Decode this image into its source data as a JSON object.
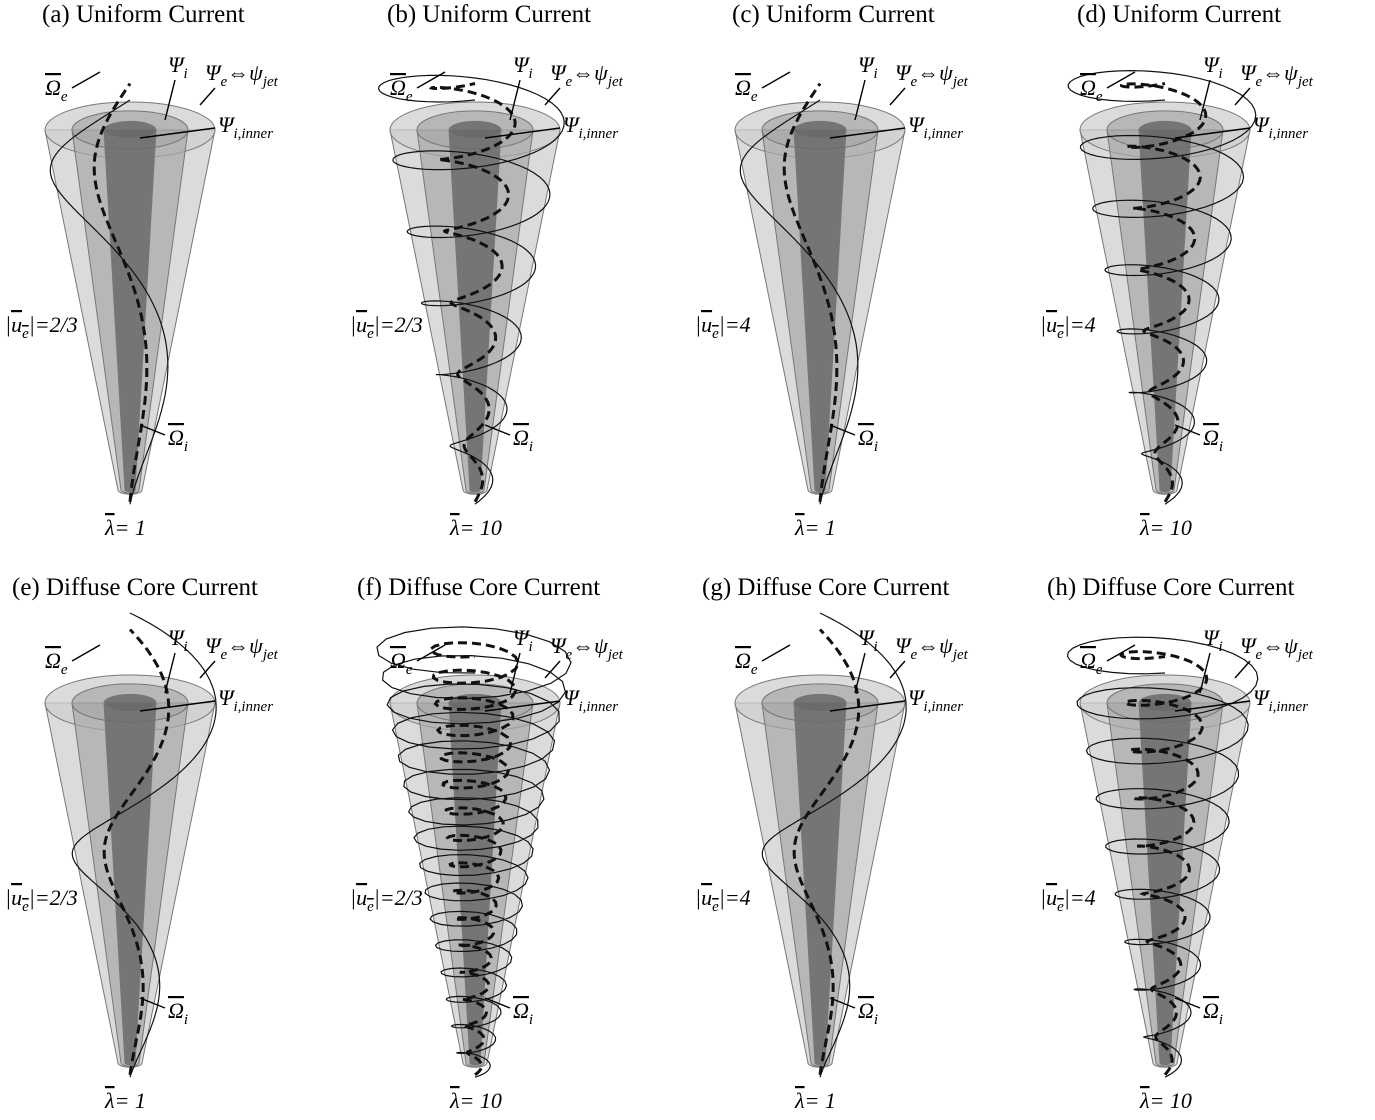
{
  "symbols": {
    "omega_e": {
      "base": "Ω",
      "sub": "e"
    },
    "psi_i": {
      "base": "Ψ",
      "sub": "i"
    },
    "psi_e": {
      "base": "Ψ",
      "sub": "e"
    },
    "equiv": "⇔",
    "psi_jet": {
      "base": "ψ",
      "sub": "jet"
    },
    "psi_inner": {
      "base": "Ψ",
      "sub": "i,inner"
    },
    "u_e": {
      "bar": "|",
      "base": "u",
      "sub": "e"
    },
    "omega_i": {
      "base": "Ω",
      "sub": "i"
    },
    "lambda": "λ"
  },
  "panels": [
    {
      "title": "(a) Uniform Current",
      "u_e_value": "=2/3",
      "lambda_value": "= 1"
    },
    {
      "title": "(b) Uniform Current",
      "u_e_value": "=2/3",
      "lambda_value": "= 10"
    },
    {
      "title": "(c) Uniform Current",
      "u_e_value": "=4",
      "lambda_value": "= 1"
    },
    {
      "title": "(d) Uniform Current",
      "u_e_value": "=4",
      "lambda_value": "= 10"
    },
    {
      "title": "(e) Diffuse Core Current",
      "u_e_value": "=2/3",
      "lambda_value": "= 1"
    },
    {
      "title": "(f) Diffuse Core Current",
      "u_e_value": "=2/3",
      "lambda_value": "= 10"
    },
    {
      "title": "(g) Diffuse Core Current",
      "u_e_value": "=4",
      "lambda_value": "= 1"
    },
    {
      "title": "(h) Diffuse Core Current",
      "u_e_value": "=4",
      "lambda_value": "= 10"
    }
  ]
}
